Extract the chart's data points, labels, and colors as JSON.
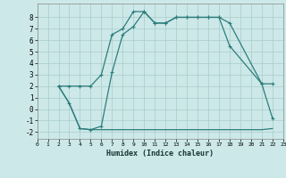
{
  "xlabel": "Humidex (Indice chaleur)",
  "bg_color": "#cde8e8",
  "grid_color": "#a8cccc",
  "line_color": "#2d7d7d",
  "xlim": [
    0,
    23
  ],
  "ylim": [
    -2.6,
    9.2
  ],
  "yticks": [
    -2,
    -1,
    0,
    1,
    2,
    3,
    4,
    5,
    6,
    7,
    8
  ],
  "xticks": [
    0,
    1,
    2,
    3,
    4,
    5,
    6,
    7,
    8,
    9,
    10,
    11,
    12,
    13,
    14,
    15,
    16,
    17,
    18,
    19,
    20,
    21,
    22,
    23
  ],
  "line1_x": [
    2,
    3,
    4,
    5,
    6,
    7,
    8,
    9,
    10,
    11,
    12,
    13,
    14,
    15,
    16,
    17,
    18,
    21,
    22
  ],
  "line1_y": [
    2.0,
    2.0,
    2.0,
    2.0,
    3.0,
    6.5,
    7.0,
    8.5,
    8.5,
    7.5,
    7.5,
    8.0,
    8.0,
    8.0,
    8.0,
    8.0,
    7.5,
    2.2,
    2.2
  ],
  "line2_x": [
    2,
    3,
    4,
    5,
    6,
    7,
    8,
    9,
    10,
    11,
    12,
    13,
    14,
    15,
    16,
    17,
    18,
    19,
    20,
    21,
    22
  ],
  "line2_y": [
    2.0,
    0.5,
    -1.7,
    -1.8,
    -1.8,
    -1.8,
    -1.8,
    -1.8,
    -1.8,
    -1.8,
    -1.8,
    -1.8,
    -1.8,
    -1.8,
    -1.8,
    -1.8,
    -1.8,
    -1.8,
    -1.8,
    -1.8,
    -1.7
  ],
  "line3_x": [
    2,
    3,
    4,
    5,
    6,
    7,
    8,
    9,
    10,
    11,
    12,
    13,
    14,
    15,
    16,
    17,
    18,
    21,
    22
  ],
  "line3_y": [
    2.0,
    0.5,
    -1.7,
    -1.8,
    -1.5,
    3.2,
    6.5,
    7.2,
    8.5,
    7.5,
    7.5,
    8.0,
    8.0,
    8.0,
    8.0,
    8.0,
    5.5,
    2.2,
    -0.8
  ],
  "marker": "+",
  "marker_size": 3.5,
  "linewidth": 0.9
}
